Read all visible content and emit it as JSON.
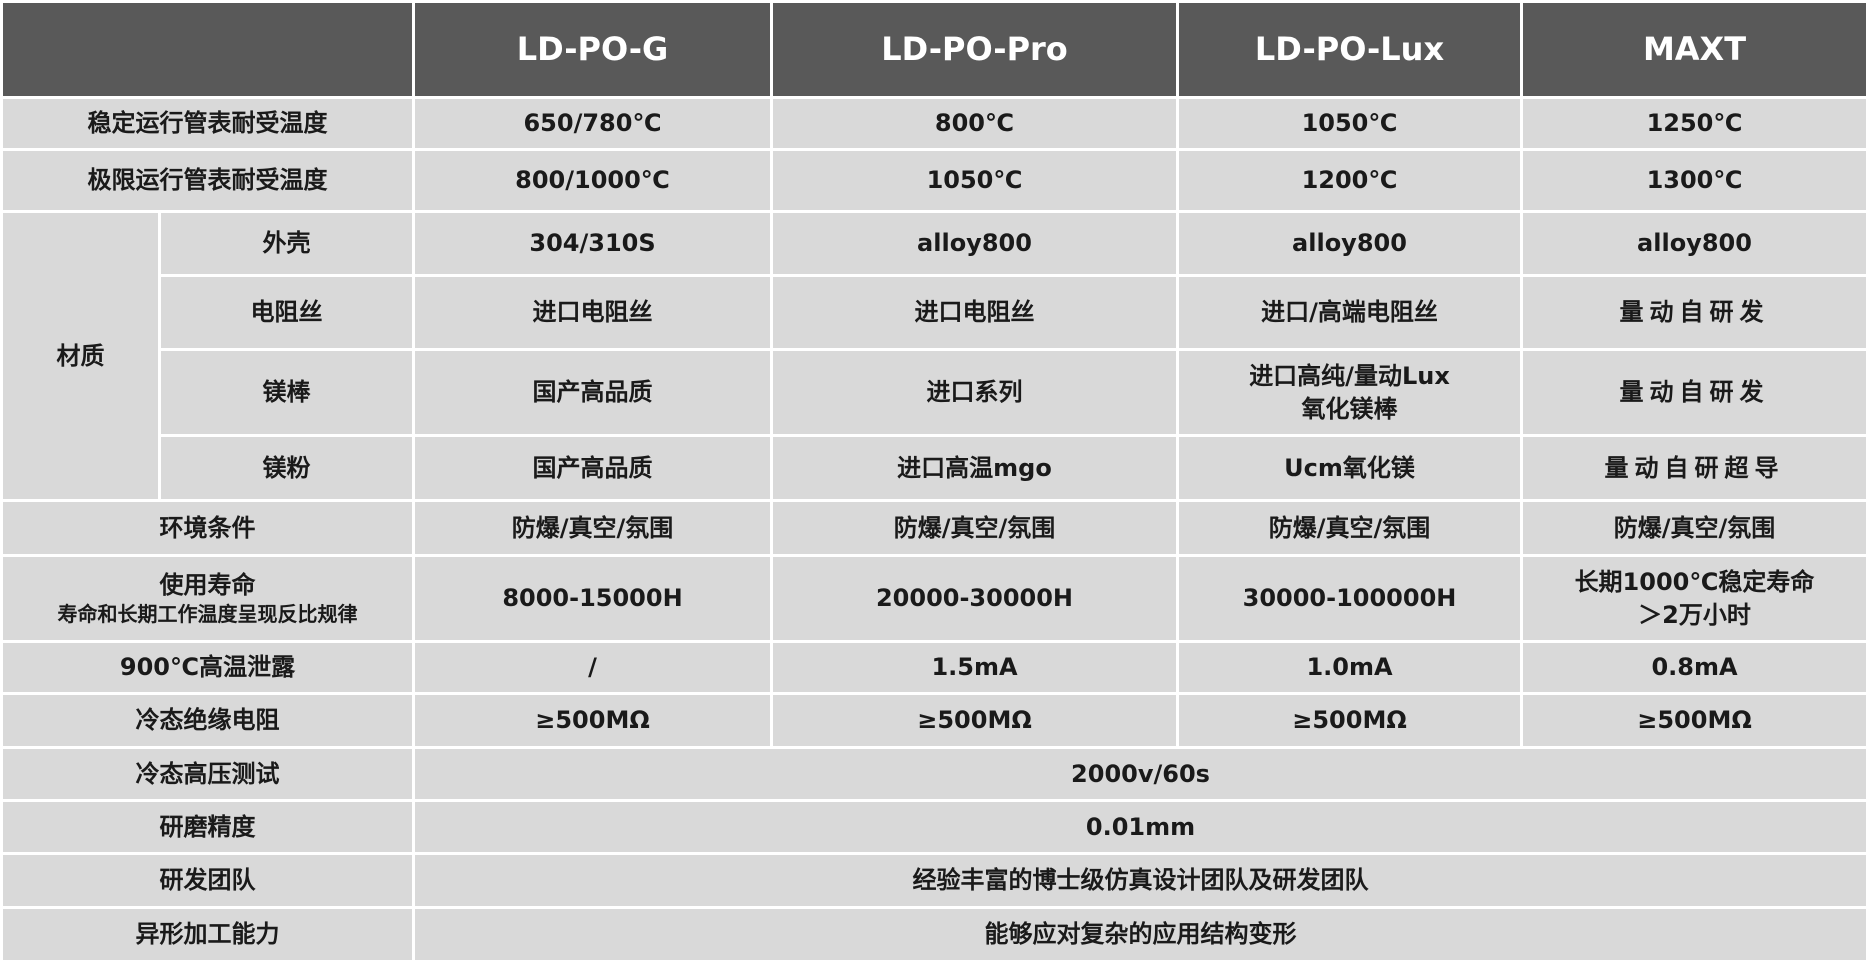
{
  "header": {
    "corner": "",
    "models": [
      "LD-PO-G",
      "LD-PO-Pro",
      "LD-PO-Lux",
      "MAXT"
    ]
  },
  "rows": {
    "stable_temp": {
      "label": "稳定运行管表耐受温度",
      "values": [
        "650/780℃",
        "800℃",
        "1050℃",
        "1250℃"
      ]
    },
    "limit_temp": {
      "label": "极限运行管表耐受温度",
      "values": [
        "800/1000℃",
        "1050℃",
        "1200℃",
        "1300℃"
      ]
    },
    "material": {
      "label": "材质",
      "shell": {
        "label": "外壳",
        "values": [
          "304/310S",
          "alloy800",
          "alloy800",
          "alloy800"
        ]
      },
      "wire": {
        "label": "电阻丝",
        "values": [
          "进口电阻丝",
          "进口电阻丝",
          "进口/高端电阻丝",
          "量动自研发"
        ]
      },
      "rod": {
        "label": "镁棒",
        "values": [
          "国产高品质",
          "进口系列",
          "进口高纯/量动Lux",
          "量动自研发"
        ],
        "lux_line2": "氧化镁棒"
      },
      "powder": {
        "label": "镁粉",
        "values": [
          "国产高品质",
          "进口高温mgo",
          "Ucm氧化镁",
          "量动自研超导"
        ]
      }
    },
    "environment": {
      "label": "环境条件",
      "values": [
        "防爆/真空/氛围",
        "防爆/真空/氛围",
        "防爆/真空/氛围",
        "防爆/真空/氛围"
      ]
    },
    "life": {
      "label": "使用寿命",
      "sublabel": "寿命和长期工作温度呈现反比规律",
      "values": [
        "8000-15000H",
        "20000-30000H",
        "30000-100000H",
        "长期1000℃稳定寿命"
      ],
      "maxt_line2": "＞2万小时"
    },
    "leakage": {
      "label": "900℃高温泄露",
      "values": [
        "/",
        "1.5mA",
        "1.0mA",
        "0.8mA"
      ]
    },
    "insulation": {
      "label": "冷态绝缘电阻",
      "values": [
        "≥500MΩ",
        "≥500MΩ",
        "≥500MΩ",
        "≥500MΩ"
      ]
    },
    "hv_test": {
      "label": "冷态高压测试",
      "value": "2000v/60s"
    },
    "grinding": {
      "label": "研磨精度",
      "value": "0.01mm"
    },
    "team": {
      "label": "研发团队",
      "value": "经验丰富的博士级仿真设计团队及研发团队"
    },
    "shaping": {
      "label": "异形加工能力",
      "value": "能够应对复杂的应用结构变形"
    }
  },
  "colors": {
    "header_bg": "#595959",
    "cell_bg": "#d9d9d9",
    "grid": "#ffffff"
  }
}
